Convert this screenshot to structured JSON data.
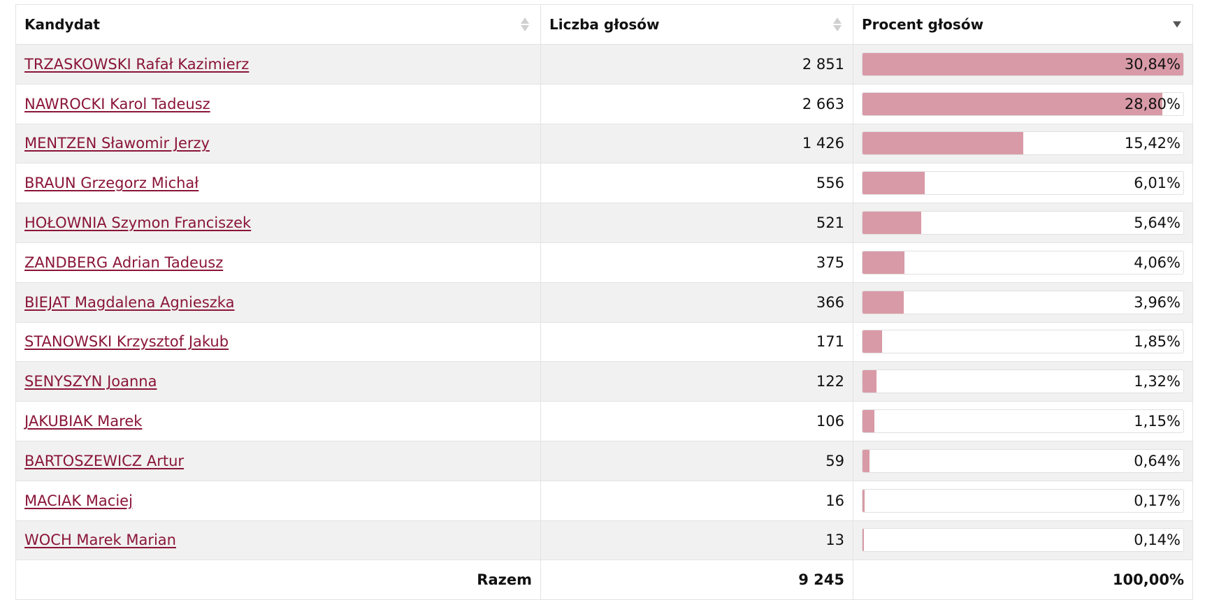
{
  "table": {
    "headers": {
      "candidate": "Kandydat",
      "votes": "Liczba głosów",
      "percent": "Procent głosów"
    },
    "sort": {
      "column": "percent",
      "direction": "descending"
    },
    "bar_color": "#d99aa7",
    "link_color": "#8a1538",
    "rows": [
      {
        "name": "TRZASKOWSKI Rafał Kazimierz",
        "votes": "2 851",
        "percent": "30,84%",
        "share": 30.84
      },
      {
        "name": "NAWROCKI Karol Tadeusz",
        "votes": "2 663",
        "percent": "28,80%",
        "share": 28.8
      },
      {
        "name": "MENTZEN Sławomir Jerzy",
        "votes": "1 426",
        "percent": "15,42%",
        "share": 15.42
      },
      {
        "name": "BRAUN Grzegorz Michał",
        "votes": "556",
        "percent": "6,01%",
        "share": 6.01
      },
      {
        "name": "HOŁOWNIA Szymon Franciszek",
        "votes": "521",
        "percent": "5,64%",
        "share": 5.64
      },
      {
        "name": "ZANDBERG Adrian Tadeusz",
        "votes": "375",
        "percent": "4,06%",
        "share": 4.06
      },
      {
        "name": "BIEJAT Magdalena Agnieszka",
        "votes": "366",
        "percent": "3,96%",
        "share": 3.96
      },
      {
        "name": "STANOWSKI Krzysztof Jakub",
        "votes": "171",
        "percent": "1,85%",
        "share": 1.85
      },
      {
        "name": "SENYSZYN Joanna",
        "votes": "122",
        "percent": "1,32%",
        "share": 1.32
      },
      {
        "name": "JAKUBIAK Marek",
        "votes": "106",
        "percent": "1,15%",
        "share": 1.15
      },
      {
        "name": "BARTOSZEWICZ Artur",
        "votes": "59",
        "percent": "0,64%",
        "share": 0.64
      },
      {
        "name": "MACIAK Maciej",
        "votes": "16",
        "percent": "0,17%",
        "share": 0.17
      },
      {
        "name": "WOCH Marek Marian",
        "votes": "13",
        "percent": "0,14%",
        "share": 0.14
      }
    ],
    "footer": {
      "label": "Razem",
      "votes": "9 245",
      "percent": "100,00%"
    }
  }
}
